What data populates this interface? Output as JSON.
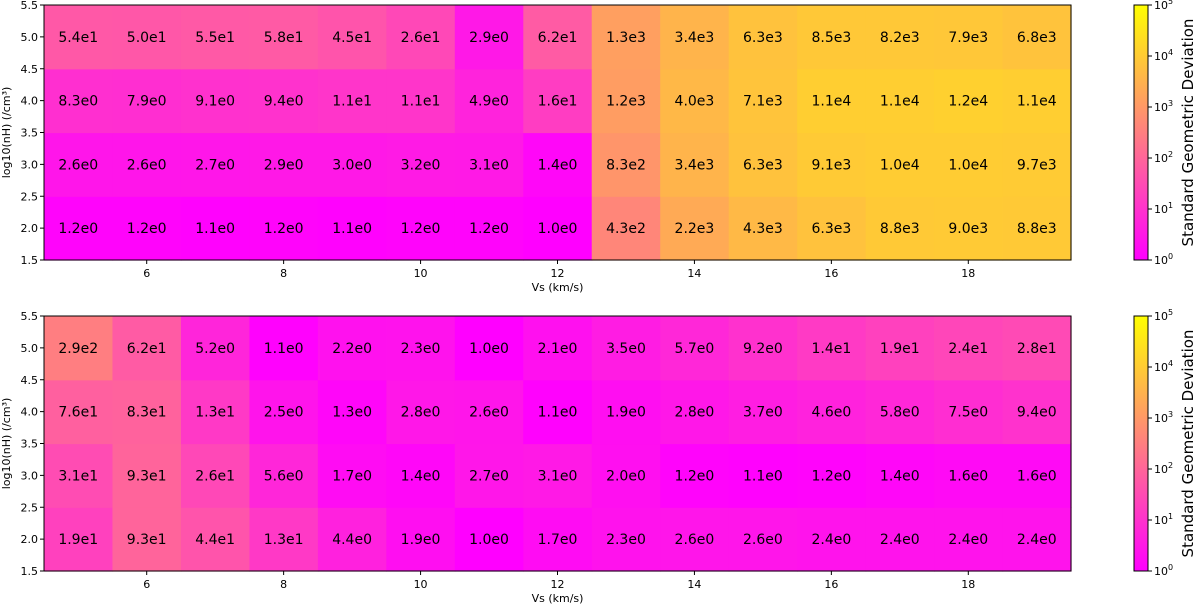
{
  "chart_data": [
    {
      "type": "heatmap",
      "xlabel": "Vs (km/s)",
      "ylabel": "log10(nH) (/cm³)",
      "x": [
        5,
        6,
        7,
        8,
        9,
        10,
        11,
        12,
        13,
        14,
        15,
        16,
        17,
        18,
        19
      ],
      "y": [
        2.0,
        3.0,
        4.0,
        5.0
      ],
      "xlim": [
        4.5,
        19.5
      ],
      "ylim": [
        1.5,
        5.5
      ],
      "xticks": [
        "6",
        "8",
        "10",
        "12",
        "14",
        "16",
        "18"
      ],
      "yticks": [
        "1.5",
        "2.0",
        "2.5",
        "3.0",
        "3.5",
        "4.0",
        "4.5",
        "5.0",
        "5.5"
      ],
      "colorscale": "spring",
      "log_color_scale": true,
      "color_range": [
        1,
        100000
      ],
      "colorbar_label": "Standard Geometric Deviation",
      "colorbar_ticks": [
        "10",
        "10",
        "10",
        "10",
        "10",
        "10"
      ],
      "colorbar_tick_exponents": [
        "0",
        "1",
        "2",
        "3",
        "4",
        "5"
      ],
      "labels": [
        [
          "1.2e0",
          "1.2e0",
          "1.1e0",
          "1.2e0",
          "1.1e0",
          "1.2e0",
          "1.2e0",
          "1.0e0",
          "4.3e2",
          "2.2e3",
          "4.3e3",
          "6.3e3",
          "8.8e3",
          "9.0e3",
          "8.8e3"
        ],
        [
          "2.6e0",
          "2.6e0",
          "2.7e0",
          "2.9e0",
          "3.0e0",
          "3.2e0",
          "3.1e0",
          "1.4e0",
          "8.3e2",
          "3.4e3",
          "6.3e3",
          "9.1e3",
          "1.0e4",
          "1.0e4",
          "9.7e3"
        ],
        [
          "8.3e0",
          "7.9e0",
          "9.1e0",
          "9.4e0",
          "1.1e1",
          "1.1e1",
          "4.9e0",
          "1.6e1",
          "1.2e3",
          "4.0e3",
          "7.1e3",
          "1.1e4",
          "1.1e4",
          "1.2e4",
          "1.1e4"
        ],
        [
          "5.4e1",
          "5.0e1",
          "5.5e1",
          "5.8e1",
          "4.5e1",
          "2.6e1",
          "2.9e0",
          "6.2e1",
          "1.3e3",
          "3.4e3",
          "6.3e3",
          "8.5e3",
          "8.2e3",
          "7.9e3",
          "6.8e3"
        ]
      ]
    },
    {
      "type": "heatmap",
      "xlabel": "Vs (km/s)",
      "ylabel": "log10(nH) (/cm³)",
      "x": [
        5,
        6,
        7,
        8,
        9,
        10,
        11,
        12,
        13,
        14,
        15,
        16,
        17,
        18,
        19
      ],
      "y": [
        2.0,
        3.0,
        4.0,
        5.0
      ],
      "xlim": [
        4.5,
        19.5
      ],
      "ylim": [
        1.5,
        5.5
      ],
      "xticks": [
        "6",
        "8",
        "10",
        "12",
        "14",
        "16",
        "18"
      ],
      "yticks": [
        "1.5",
        "2.0",
        "2.5",
        "3.0",
        "3.5",
        "4.0",
        "4.5",
        "5.0",
        "5.5"
      ],
      "colorscale": "spring",
      "log_color_scale": true,
      "color_range": [
        1,
        100000
      ],
      "colorbar_label": "Standard Geometric Deviation",
      "colorbar_ticks": [
        "10",
        "10",
        "10",
        "10",
        "10",
        "10"
      ],
      "colorbar_tick_exponents": [
        "0",
        "1",
        "2",
        "3",
        "4",
        "5"
      ],
      "labels": [
        [
          "1.9e1",
          "9.3e1",
          "4.4e1",
          "1.3e1",
          "4.4e0",
          "1.9e0",
          "1.0e0",
          "1.7e0",
          "2.3e0",
          "2.6e0",
          "2.6e0",
          "2.4e0",
          "2.4e0",
          "2.4e0",
          "2.4e0"
        ],
        [
          "3.1e1",
          "9.3e1",
          "2.6e1",
          "5.6e0",
          "1.7e0",
          "1.4e0",
          "2.7e0",
          "3.1e0",
          "2.0e0",
          "1.2e0",
          "1.1e0",
          "1.2e0",
          "1.4e0",
          "1.6e0",
          "1.6e0"
        ],
        [
          "7.6e1",
          "8.3e1",
          "1.3e1",
          "2.5e0",
          "1.3e0",
          "2.8e0",
          "2.6e0",
          "1.1e0",
          "1.9e0",
          "2.8e0",
          "3.7e0",
          "4.6e0",
          "5.8e0",
          "7.5e0",
          "9.4e0"
        ],
        [
          "2.9e2",
          "6.2e1",
          "5.2e0",
          "1.1e0",
          "2.2e0",
          "2.3e0",
          "1.0e0",
          "2.1e0",
          "3.5e0",
          "5.7e0",
          "9.2e0",
          "1.4e1",
          "1.9e1",
          "2.4e1",
          "2.8e1"
        ]
      ]
    }
  ]
}
